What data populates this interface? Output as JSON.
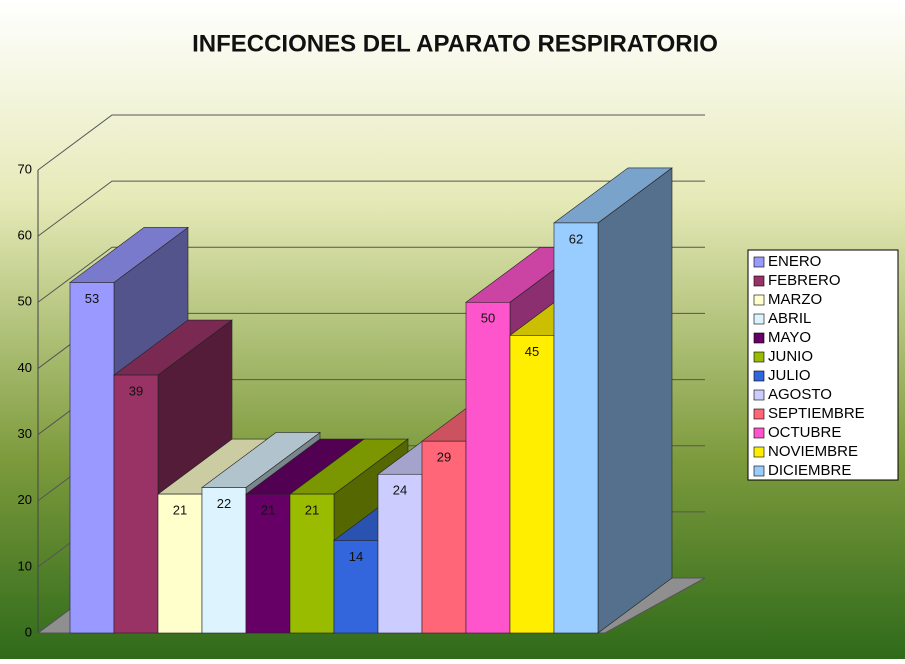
{
  "chart_data": {
    "type": "bar3d",
    "title": "INFECCIONES DEL APARATO RESPIRATORIO",
    "categories": [
      "ENERO",
      "FEBRERO",
      "MARZO",
      "ABRIL",
      "MAYO",
      "JUNIO",
      "JULIO",
      "AGOSTO",
      "SEPTIEMBRE",
      "OCTUBRE",
      "NOVIEMBRE",
      "DICIEMBRE"
    ],
    "values": [
      53,
      39,
      21,
      22,
      21,
      21,
      14,
      24,
      29,
      50,
      45,
      62
    ],
    "colors": [
      "#9999ff",
      "#993366",
      "#ffffcc",
      "#ddf4ff",
      "#660066",
      "#99bb00",
      "#3366dd",
      "#ccccff",
      "#ff6677",
      "#ff55cc",
      "#ffee00",
      "#99ccff"
    ],
    "ylim": [
      0,
      70
    ],
    "yticks": [
      0,
      10,
      20,
      30,
      40,
      50,
      60,
      70
    ],
    "grid": true,
    "legend": "right"
  }
}
